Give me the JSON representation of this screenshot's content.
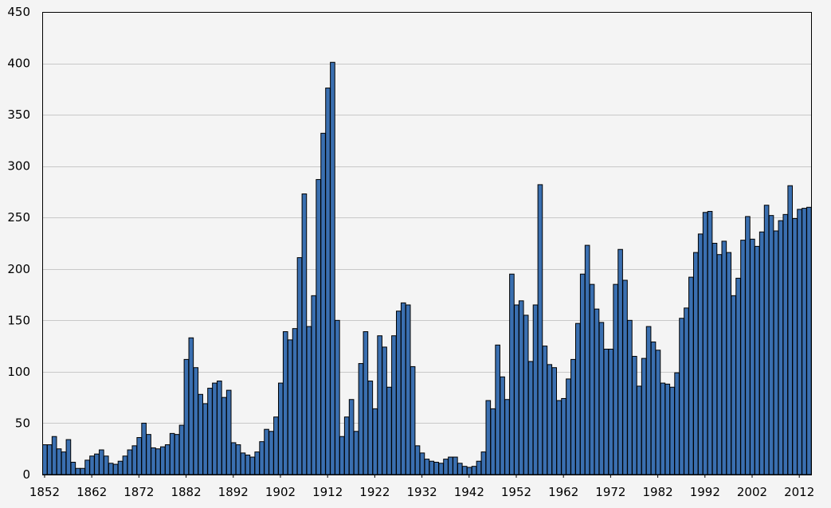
{
  "chart_data": {
    "type": "bar",
    "title": "",
    "xlabel": "",
    "ylabel": "",
    "ylim": [
      0,
      450
    ],
    "yticks": [
      0,
      50,
      100,
      150,
      200,
      250,
      300,
      350,
      400,
      450
    ],
    "xtick_labels": [
      "1852",
      "1862",
      "1872",
      "1882",
      "1892",
      "1902",
      "1912",
      "1922",
      "1932",
      "1942",
      "1952",
      "1962",
      "1972",
      "1982",
      "1992",
      "2002",
      "2012"
    ],
    "grid": "horizontal",
    "legend": "none",
    "bar_color": "#3a6fb0",
    "bar_edge_color": "#000000",
    "years": [
      1852,
      1853,
      1854,
      1855,
      1856,
      1857,
      1858,
      1859,
      1860,
      1861,
      1862,
      1863,
      1864,
      1865,
      1866,
      1867,
      1868,
      1869,
      1870,
      1871,
      1872,
      1873,
      1874,
      1875,
      1876,
      1877,
      1878,
      1879,
      1880,
      1881,
      1882,
      1883,
      1884,
      1885,
      1886,
      1887,
      1888,
      1889,
      1890,
      1891,
      1892,
      1893,
      1894,
      1895,
      1896,
      1897,
      1898,
      1899,
      1900,
      1901,
      1902,
      1903,
      1904,
      1905,
      1906,
      1907,
      1908,
      1909,
      1910,
      1911,
      1912,
      1913,
      1914,
      1915,
      1916,
      1917,
      1918,
      1919,
      1920,
      1921,
      1922,
      1923,
      1924,
      1925,
      1926,
      1927,
      1928,
      1929,
      1930,
      1931,
      1932,
      1933,
      1934,
      1935,
      1936,
      1937,
      1938,
      1939,
      1940,
      1941,
      1942,
      1943,
      1944,
      1945,
      1946,
      1947,
      1948,
      1949,
      1950,
      1951,
      1952,
      1953,
      1954,
      1955,
      1956,
      1957,
      1958,
      1959,
      1960,
      1961,
      1962,
      1963,
      1964,
      1965,
      1966,
      1967,
      1968,
      1969,
      1970,
      1971,
      1972,
      1973,
      1974,
      1975,
      1976,
      1977,
      1978,
      1979,
      1980,
      1981,
      1982,
      1983,
      1984,
      1985,
      1986,
      1987,
      1988,
      1989,
      1990,
      1991,
      1992,
      1993,
      1994,
      1995,
      1996,
      1997,
      1998,
      1999,
      2000,
      2001,
      2002,
      2003,
      2004,
      2005,
      2006,
      2007,
      2008,
      2009,
      2010,
      2011,
      2012,
      2013,
      2014
    ],
    "values": [
      29,
      29,
      37,
      25,
      22,
      34,
      12,
      6,
      6,
      14,
      18,
      20,
      24,
      18,
      11,
      10,
      13,
      18,
      24,
      28,
      36,
      50,
      39,
      26,
      25,
      27,
      29,
      40,
      39,
      48,
      112,
      133,
      104,
      78,
      69,
      84,
      89,
      91,
      75,
      82,
      31,
      29,
      21,
      19,
      17,
      22,
      32,
      44,
      42,
      56,
      89,
      139,
      131,
      142,
      211,
      273,
      144,
      174,
      287,
      332,
      376,
      401,
      150,
      37,
      56,
      73,
      42,
      108,
      139,
      91,
      64,
      135,
      124,
      85,
      135,
      159,
      167,
      165,
      105,
      28,
      21,
      15,
      13,
      12,
      11,
      15,
      17,
      17,
      11,
      8,
      7,
      8,
      13,
      22,
      72,
      64,
      126,
      95,
      73,
      195,
      165,
      169,
      155,
      110,
      165,
      282,
      125,
      107,
      104,
      72,
      74,
      93,
      112,
      147,
      195,
      223,
      185,
      161,
      148,
      122,
      122,
      185,
      219,
      189,
      150,
      115,
      86,
      113,
      144,
      129,
      121,
      89,
      88,
      85,
      99,
      152,
      162,
      192,
      216,
      234,
      255,
      256,
      225,
      214,
      227,
      216,
      174,
      191,
      228,
      251,
      229,
      222,
      236,
      262,
      252,
      237,
      247,
      253,
      281,
      249,
      258,
      259,
      260
    ]
  }
}
